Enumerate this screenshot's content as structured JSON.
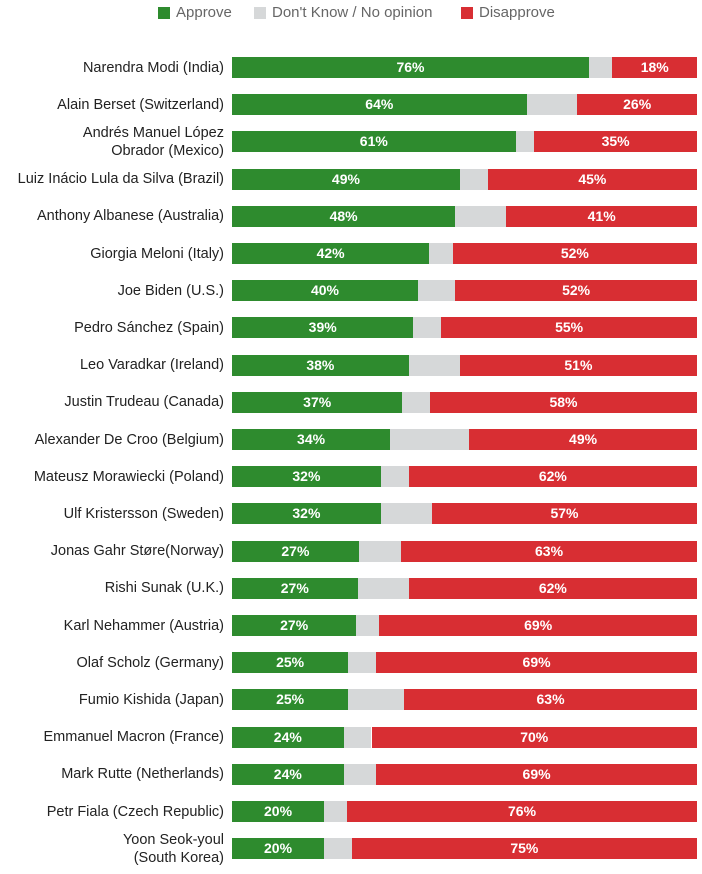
{
  "colors": {
    "approve": "#2e8b2e",
    "dont_know": "#d6d8d9",
    "disapprove": "#d82e33"
  },
  "chart_data": {
    "type": "bar",
    "orientation": "horizontal",
    "stacked": true,
    "legend_position": "top",
    "categories": [
      "Narendra Modi (India)",
      "Alain Berset (Switzerland)",
      "Andrés Manuel López Obrador (Mexico)",
      "Luiz Inácio Lula da Silva (Brazil)",
      "Anthony Albanese (Australia)",
      "Giorgia Meloni (Italy)",
      "Joe Biden (U.S.)",
      "Pedro Sánchez (Spain)",
      "Leo Varadkar (Ireland)",
      "Justin Trudeau (Canada)",
      "Alexander De Croo (Belgium)",
      "Mateusz Morawiecki (Poland)",
      "Ulf Kristersson (Sweden)",
      "Jonas Gahr Støre(Norway)",
      "Rishi Sunak (U.K.)",
      "Karl Nehammer (Austria)",
      "Olaf Scholz (Germany)",
      "Fumio Kishida (Japan)",
      "Emmanuel Macron (France)",
      "Mark Rutte (Netherlands)",
      "Petr Fiala (Czech Republic)",
      "Yoon Seok-youl (South Korea)"
    ],
    "series": [
      {
        "name": "Approve",
        "values": [
          76,
          64,
          61,
          49,
          48,
          42,
          40,
          39,
          38,
          37,
          34,
          32,
          32,
          27,
          27,
          27,
          25,
          25,
          24,
          24,
          20,
          20
        ]
      },
      {
        "name": "Don't Know / No opinion",
        "values": [
          5,
          11,
          4,
          6,
          11,
          5,
          8,
          6,
          11,
          6,
          17,
          6,
          11,
          9,
          11,
          5,
          6,
          12,
          6,
          7,
          5,
          6
        ]
      },
      {
        "name": "Disapprove",
        "values": [
          18,
          26,
          35,
          45,
          41,
          52,
          52,
          55,
          51,
          58,
          49,
          62,
          57,
          63,
          62,
          69,
          69,
          63,
          70,
          69,
          76,
          75
        ]
      }
    ],
    "xlim": [
      0,
      100
    ]
  }
}
